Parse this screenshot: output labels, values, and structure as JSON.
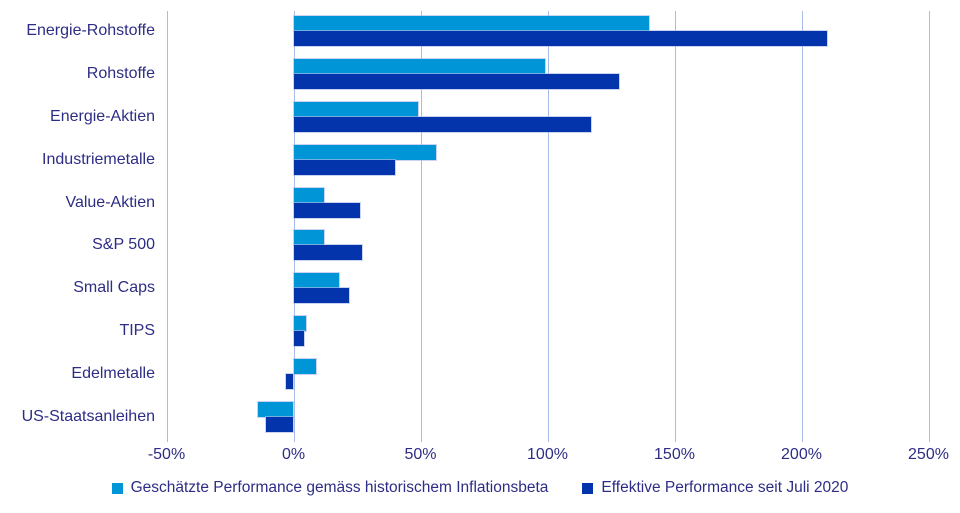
{
  "chart_data": {
    "type": "bar",
    "orientation": "horizontal",
    "title": "",
    "categories": [
      "Energie-Rohstoffe",
      "Rohstoffe",
      "Energie-Aktien",
      "Industriemetalle",
      "Value-Aktien",
      "S&P 500",
      "Small Caps",
      "TIPS",
      "Edelmetalle",
      "US-Staatsanleihen"
    ],
    "series": [
      {
        "name": "Geschätzte Performance gemäss historischem Inflationsbeta",
        "color": "#0095d6",
        "values": [
          140,
          99,
          49,
          56,
          12,
          12,
          18,
          5,
          9,
          -14
        ]
      },
      {
        "name": "Effektive Performance seit Juli 2020",
        "color": "#0334ac",
        "values": [
          210,
          128,
          117,
          40,
          26,
          27,
          22,
          4,
          -3,
          -11
        ]
      }
    ],
    "x_axis": {
      "min": -50,
      "max": 250,
      "unit": "%",
      "ticks": [
        -50,
        0,
        50,
        100,
        150,
        200,
        250
      ],
      "tick_labels": [
        "-50%",
        "0%",
        "50%",
        "100%",
        "150%",
        "200%",
        "250%"
      ]
    },
    "grid": true,
    "legend_position": "bottom",
    "colors": {
      "text": "#2d2d85",
      "gridline": "#a9bce8",
      "background": "#ffffff"
    }
  }
}
